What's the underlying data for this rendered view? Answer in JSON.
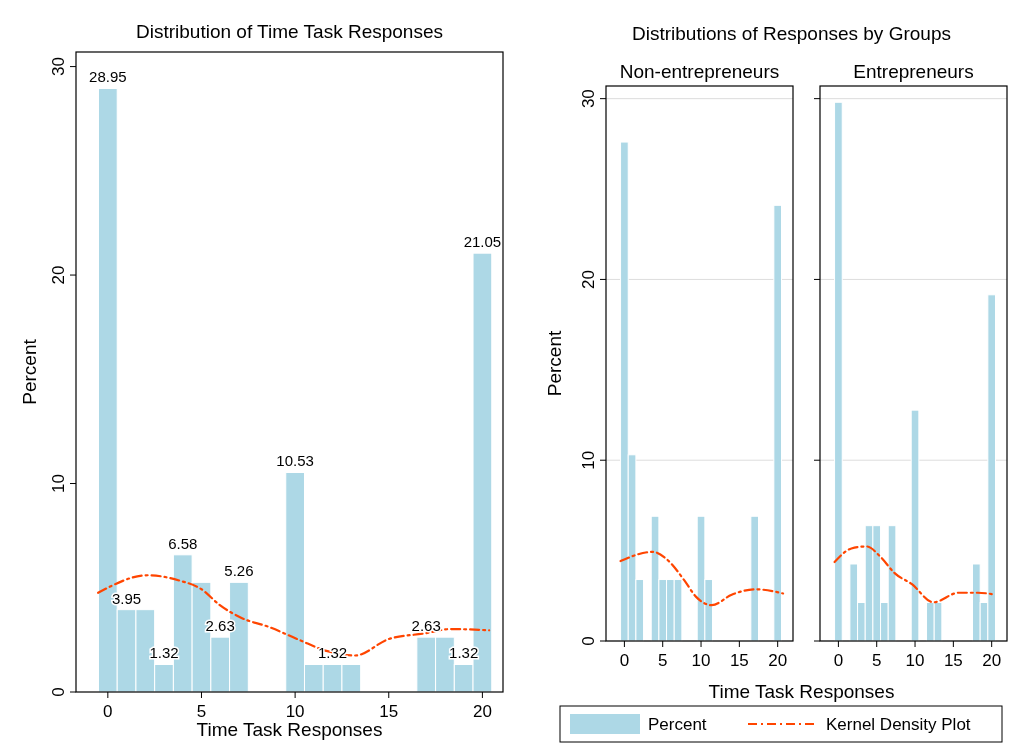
{
  "chart_data": [
    {
      "type": "histogram",
      "title": "Distribution of Time Task Responses",
      "xlabel": "Time Task Responses",
      "ylabel": "Percent",
      "bins": [
        -0.5,
        0.5,
        1.5,
        2.5,
        3.5,
        4.5,
        5.5,
        6.5,
        7.5,
        8.5,
        9.5,
        10.5,
        11.5,
        12.5,
        13.5,
        14.5,
        15.5,
        16.5,
        17.5,
        18.5,
        19.5,
        20.5
      ],
      "xlim": [
        -1.7,
        21.1
      ],
      "ylim": [
        0,
        30.7
      ],
      "xticks": [
        0,
        5,
        10,
        15,
        20
      ],
      "yticks": [
        0,
        10,
        20,
        30
      ],
      "grid": false,
      "line_style": "dashed",
      "series": [
        {
          "color": "#add8e6",
          "values": [
            28.95,
            3.95,
            3.95,
            1.32,
            6.58,
            5.26,
            2.63,
            5.26,
            0,
            0,
            10.53,
            1.32,
            1.32,
            1.32,
            0,
            0,
            0,
            2.63,
            2.63,
            1.32,
            21.05
          ],
          "value_labels": [
            "28.95",
            "3.95",
            null,
            "1.32",
            "6.58",
            null,
            "2.63",
            "5.26",
            null,
            null,
            "10.53",
            null,
            "1.32",
            null,
            null,
            null,
            null,
            "2.63",
            null,
            "1.32",
            "21.05"
          ]
        },
        {
          "type": "line",
          "color": "#ff4500",
          "x": [
            -0.52,
            2.14,
            3.8,
            5.0,
            5.95,
            7.14,
            8.57,
            10.24,
            11.67,
            13.2,
            15,
            16.9,
            18.33,
            20.36
          ],
          "values": [
            4.76,
            5.6,
            5.35,
            4.93,
            4.19,
            3.55,
            3.13,
            2.49,
            1.97,
            1.75,
            2.54,
            2.81,
            3.02,
            2.96
          ]
        }
      ]
    },
    {
      "type": "histogram",
      "title": "Distributions of Responses by Groups",
      "subtitle": "Non-entrepreneurs",
      "xlabel": "Time Task Responses",
      "ylabel": "Percent",
      "bins": [
        -0.5,
        0.5,
        1.5,
        2.5,
        3.5,
        4.5,
        5.5,
        6.5,
        7.5,
        8.5,
        9.5,
        10.5,
        11.5,
        12.5,
        13.5,
        14.5,
        15.5,
        16.5,
        17.5,
        18.5,
        19.5,
        20.5
      ],
      "xlim": [
        -2.4,
        22
      ],
      "ylim": [
        0,
        30.7
      ],
      "xticks": [
        0,
        5,
        10,
        15,
        20
      ],
      "yticks": [
        0,
        10,
        20,
        30
      ],
      "grid": "y",
      "legend": "bottom",
      "line_style": "dashed",
      "series": [
        {
          "name": "Percent",
          "color": "#add8e6",
          "values": [
            27.6,
            10.3,
            3.4,
            0,
            6.9,
            3.4,
            3.4,
            3.4,
            0,
            0,
            6.9,
            3.4,
            0,
            0,
            0,
            0,
            0,
            6.9,
            0,
            0,
            24.1
          ]
        },
        {
          "name": "Kernel Density Plot",
          "type": "line",
          "color": "#ff4500",
          "x": [
            -0.5,
            3.7,
            5.5,
            7.8,
            9.36,
            11.4,
            14,
            17.1,
            20.7
          ],
          "values": [
            4.42,
            4.93,
            4.53,
            3.37,
            2.44,
            1.98,
            2.56,
            2.86,
            2.63
          ]
        }
      ]
    },
    {
      "type": "histogram",
      "subtitle": "Entrepreneurs",
      "bins": [
        -0.5,
        0.5,
        1.5,
        2.5,
        3.5,
        4.5,
        5.5,
        6.5,
        7.5,
        8.5,
        9.5,
        10.5,
        11.5,
        12.5,
        13.5,
        14.5,
        15.5,
        16.5,
        17.5,
        18.5,
        19.5,
        20.5
      ],
      "xlim": [
        -2.4,
        22
      ],
      "ylim": [
        0,
        30.7
      ],
      "xticks": [
        0,
        5,
        10,
        15,
        20
      ],
      "yticks": [
        0,
        10,
        20,
        30
      ],
      "grid": "y",
      "tick_labels": "x",
      "line_style": "dashed",
      "series": [
        {
          "color": "#add8e6",
          "values": [
            29.8,
            0,
            4.26,
            2.13,
            6.38,
            6.38,
            2.13,
            6.38,
            0,
            0,
            12.77,
            0,
            2.13,
            2.13,
            0,
            0,
            0,
            0,
            4.26,
            2.13,
            19.15
          ]
        },
        {
          "type": "line",
          "color": "#ff4500",
          "x": [
            -0.5,
            1.7,
            3.7,
            5.5,
            7.3,
            9.6,
            12.4,
            15.7,
            18.2,
            20.5
          ],
          "values": [
            4.37,
            5.12,
            5.23,
            4.65,
            3.77,
            3.14,
            2.14,
            2.67,
            2.67,
            2.56
          ]
        }
      ]
    }
  ]
}
